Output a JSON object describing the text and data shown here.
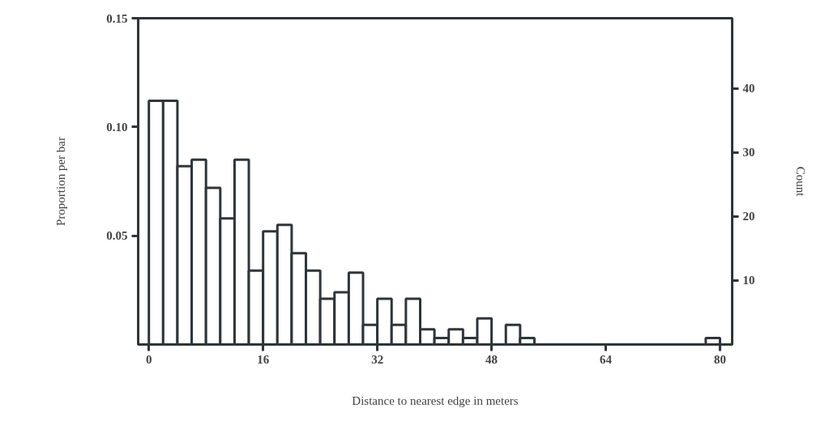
{
  "chart_data": {
    "type": "histogram",
    "xlabel": "Distance to nearest edge in meters",
    "ylabel": "Proportion per bar",
    "y2label": "Count",
    "bins": [
      0,
      2,
      4,
      6,
      8,
      10,
      12,
      14,
      16,
      18,
      20,
      22,
      24,
      26,
      28,
      30,
      32,
      34,
      36,
      38,
      40,
      42,
      44,
      46,
      48,
      50,
      52,
      54,
      56,
      58,
      60,
      62,
      64,
      66,
      68,
      70,
      72,
      74,
      76,
      78,
      80
    ],
    "values": [
      0.112,
      0.112,
      0.082,
      0.085,
      0.072,
      0.058,
      0.085,
      0.034,
      0.052,
      0.055,
      0.042,
      0.034,
      0.021,
      0.024,
      0.033,
      0.009,
      0.021,
      0.009,
      0.021,
      0.007,
      0.003,
      0.007,
      0.003,
      0.012,
      0,
      0.009,
      0.003,
      0,
      0,
      0,
      0,
      0,
      0,
      0,
      0,
      0,
      0,
      0,
      0,
      0.003
    ],
    "color": "#2f3539",
    "xlim": [
      -1.5,
      81.7
    ],
    "xticks": [
      0,
      16,
      32,
      48,
      64,
      80
    ],
    "ylim": [
      0,
      0.15
    ],
    "yticks": [
      {
        "value": 0.05,
        "label": "0.05"
      },
      {
        "value": 0.1,
        "label": "0.10"
      },
      {
        "value": 0.15,
        "label": "0.15"
      }
    ],
    "y2lim": [
      0,
      51
    ],
    "y2ticks": [
      10,
      20,
      30,
      40
    ],
    "grid": false
  }
}
